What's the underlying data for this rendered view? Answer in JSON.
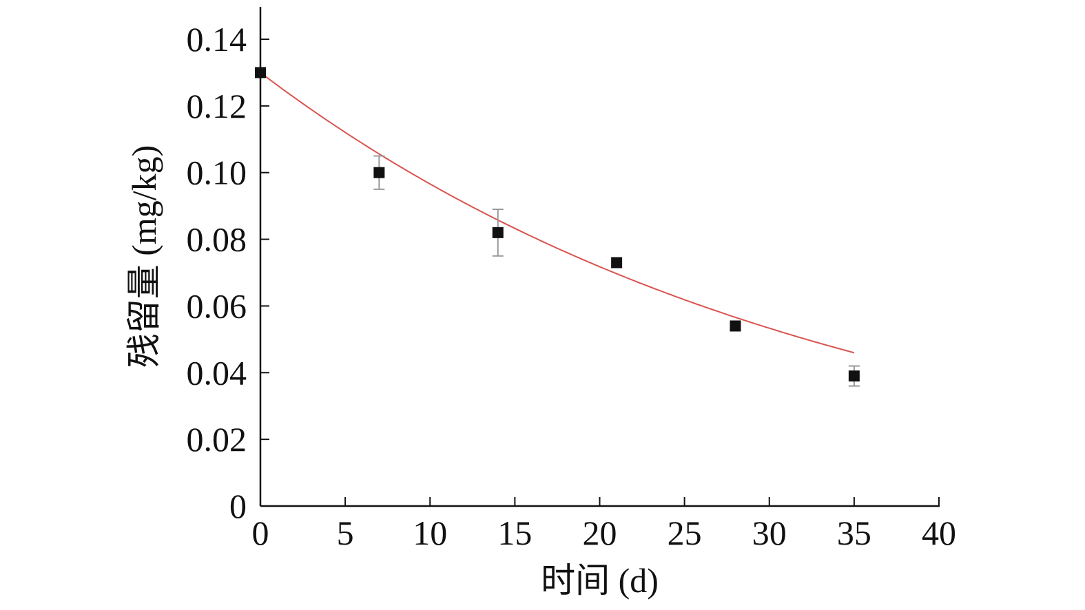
{
  "chart_data": {
    "type": "scatter",
    "title": "",
    "xlabel": "时间 (d)",
    "ylabel": "残留量 (mg/kg)",
    "xlim": [
      0,
      40
    ],
    "ylim": [
      0,
      0.15
    ],
    "x_ticks": [
      0,
      5,
      10,
      15,
      20,
      25,
      30,
      35,
      40
    ],
    "x_tick_labels": [
      "0",
      "5",
      "10",
      "15",
      "20",
      "25",
      "30",
      "35",
      "40"
    ],
    "y_ticks": [
      0,
      0.02,
      0.04,
      0.06,
      0.08,
      0.1,
      0.12,
      0.14
    ],
    "y_tick_labels": [
      "0",
      "0.02",
      "0.04",
      "0.06",
      "0.08",
      "0.10",
      "0.12",
      "0.14"
    ],
    "grid": false,
    "legend": "none",
    "series": [
      {
        "kind": "scatter",
        "marker": "square",
        "color": "#111111",
        "points": [
          {
            "x": 0,
            "y": 0.13,
            "err": 0.0
          },
          {
            "x": 7,
            "y": 0.1,
            "err": 0.005
          },
          {
            "x": 14,
            "y": 0.082,
            "err": 0.007
          },
          {
            "x": 21,
            "y": 0.073,
            "err": 0.0
          },
          {
            "x": 28,
            "y": 0.054,
            "err": 0.0
          },
          {
            "x": 35,
            "y": 0.039,
            "err": 0.003
          }
        ]
      },
      {
        "kind": "fit-line",
        "color": "#d9534f",
        "model": "exponential",
        "c0": 0.13,
        "k": 0.0297,
        "x_range": [
          0,
          35
        ]
      }
    ]
  },
  "colors": {
    "axis": "#111111",
    "markers": "#111111",
    "fit_line": "#d9534f",
    "error_bars": "#999999",
    "background": "#ffffff"
  }
}
